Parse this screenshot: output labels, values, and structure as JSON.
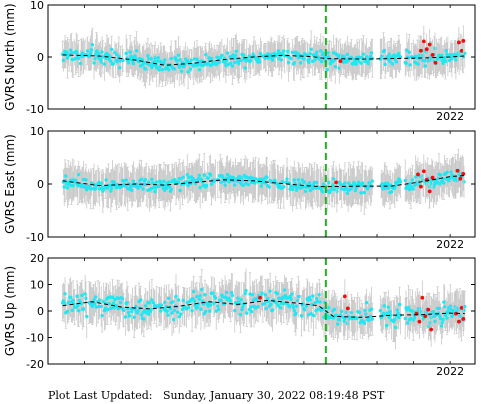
{
  "footer": {
    "label": "Plot Last Updated:",
    "timestamp": "Sunday, January 30, 2022 08:19:48 PST"
  },
  "colors": {
    "cyan": "#22e6f2",
    "red": "#f20d0d",
    "errorbar": "#c8c8c8",
    "trend": "#000000",
    "vline": "#22b022"
  },
  "chart_data": [
    {
      "type": "scatter",
      "ylabel": "GVRS North (mm)",
      "ylim": [
        -10,
        10
      ],
      "yticks": [
        "10",
        "0",
        "-10"
      ],
      "year_label": "2022",
      "vertical_line_year": 2021.15,
      "x_range": [
        2019.35,
        2022.1
      ],
      "trend": [
        [
          2019.35,
          0.4
        ],
        [
          2019.6,
          0.2
        ],
        [
          2019.85,
          -0.6
        ],
        [
          2020.05,
          -1.6
        ],
        [
          2020.25,
          -1.2
        ],
        [
          2020.45,
          -0.5
        ],
        [
          2020.65,
          0.0
        ],
        [
          2020.85,
          0.3
        ],
        [
          2021.05,
          0.1
        ],
        [
          2021.15,
          -0.3
        ],
        [
          2021.4,
          -0.4
        ],
        [
          2021.6,
          -0.3
        ],
        [
          2021.8,
          -0.2
        ],
        [
          2022.0,
          0.0
        ],
        [
          2022.1,
          0.2
        ]
      ],
      "noise": 1.2,
      "errorbar": 3.0,
      "red_points": [
        [
          2021.25,
          -0.8
        ],
        [
          2021.8,
          1.2
        ],
        [
          2021.82,
          3.0
        ],
        [
          2021.84,
          1.5
        ],
        [
          2021.86,
          2.4
        ],
        [
          2021.88,
          0.4
        ],
        [
          2021.9,
          -1.1
        ],
        [
          2022.06,
          2.8
        ],
        [
          2022.08,
          1.2
        ],
        [
          2022.09,
          3.1
        ]
      ]
    },
    {
      "type": "scatter",
      "ylabel": "GVRS East (mm)",
      "ylim": [
        -10,
        10
      ],
      "yticks": [
        "10",
        "0",
        "-10"
      ],
      "year_label": "2022",
      "vertical_line_year": 2021.15,
      "x_range": [
        2019.35,
        2022.1
      ],
      "trend": [
        [
          2019.35,
          0.6
        ],
        [
          2019.6,
          -0.3
        ],
        [
          2019.85,
          0.0
        ],
        [
          2020.05,
          -0.2
        ],
        [
          2020.25,
          0.3
        ],
        [
          2020.45,
          0.8
        ],
        [
          2020.65,
          0.6
        ],
        [
          2020.85,
          0.1
        ],
        [
          2021.05,
          -0.4
        ],
        [
          2021.15,
          -0.5
        ],
        [
          2021.4,
          -0.4
        ],
        [
          2021.6,
          -0.4
        ],
        [
          2021.8,
          0.4
        ],
        [
          2022.0,
          1.4
        ],
        [
          2022.1,
          1.6
        ]
      ],
      "noise": 1.0,
      "errorbar": 3.2,
      "red_points": [
        [
          2021.22,
          0.3
        ],
        [
          2021.78,
          1.8
        ],
        [
          2021.8,
          -0.5
        ],
        [
          2021.82,
          2.4
        ],
        [
          2021.84,
          0.8
        ],
        [
          2021.86,
          -1.4
        ],
        [
          2021.88,
          1.2
        ],
        [
          2022.05,
          2.5
        ],
        [
          2022.07,
          1.0
        ],
        [
          2022.09,
          1.9
        ]
      ]
    },
    {
      "type": "scatter",
      "ylabel": "GVRS Up (mm)",
      "ylim": [
        -20,
        20
      ],
      "yticks": [
        "20",
        "10",
        "0",
        "-10",
        "-20"
      ],
      "year_label": "2022",
      "vertical_line_year": 2021.15,
      "x_range": [
        2019.35,
        2022.1
      ],
      "trend": [
        [
          2019.35,
          2.0
        ],
        [
          2019.55,
          3.5
        ],
        [
          2019.75,
          1.5
        ],
        [
          2019.95,
          0.8
        ],
        [
          2020.15,
          1.8
        ],
        [
          2020.35,
          3.5
        ],
        [
          2020.55,
          2.5
        ],
        [
          2020.75,
          4.0
        ],
        [
          2020.95,
          3.0
        ],
        [
          2021.1,
          2.0
        ],
        [
          2021.2,
          -2.0
        ],
        [
          2021.4,
          -2.4
        ],
        [
          2021.6,
          -1.6
        ],
        [
          2021.8,
          -1.4
        ],
        [
          2022.0,
          -0.8
        ],
        [
          2022.1,
          -1.0
        ]
      ],
      "noise": 3.5,
      "errorbar": 6.5,
      "red_points": [
        [
          2020.7,
          5.0
        ],
        [
          2021.28,
          5.5
        ],
        [
          2021.3,
          1.0
        ],
        [
          2021.77,
          -1.0
        ],
        [
          2021.79,
          -4.0
        ],
        [
          2021.81,
          5.0
        ],
        [
          2021.83,
          -2.0
        ],
        [
          2021.85,
          0.5
        ],
        [
          2021.87,
          -7.0
        ],
        [
          2022.04,
          -1.0
        ],
        [
          2022.06,
          -4.0
        ],
        [
          2022.08,
          1.2
        ],
        [
          2022.09,
          -3.0
        ]
      ]
    }
  ]
}
